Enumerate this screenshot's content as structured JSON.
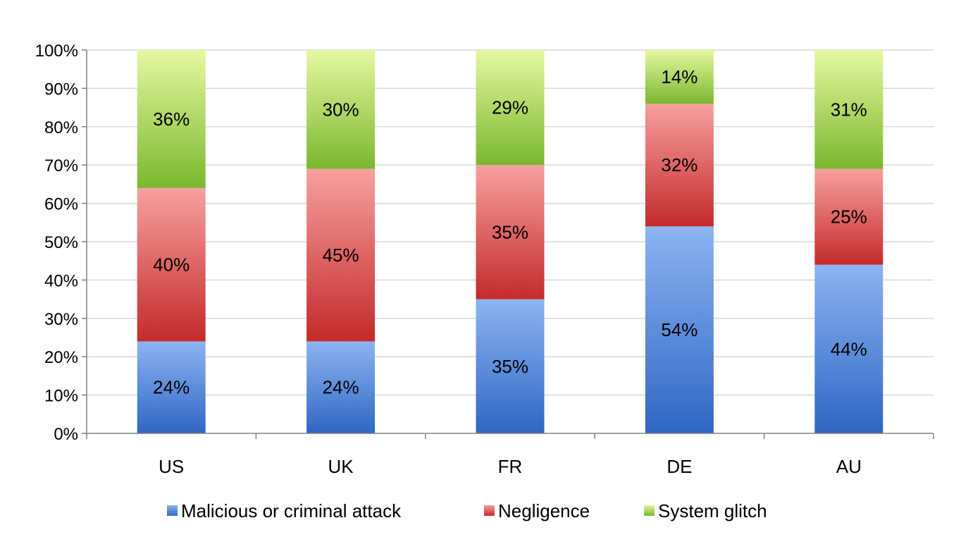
{
  "chart_data": {
    "type": "bar",
    "stacked": true,
    "categories": [
      "US",
      "UK",
      "FR",
      "DE",
      "AU"
    ],
    "series": [
      {
        "name": "Malicious or criminal attack",
        "values": [
          24,
          24,
          35,
          54,
          44
        ],
        "labels": [
          "24%",
          "24%",
          "35%",
          "54%",
          "44%"
        ],
        "color_light": "#8db4f2",
        "color_dark": "#2f66c4"
      },
      {
        "name": "Negligence",
        "values": [
          40,
          45,
          35,
          32,
          25
        ],
        "labels": [
          "40%",
          "45%",
          "35%",
          "32%",
          "25%"
        ],
        "color_light": "#f7a0a0",
        "color_dark": "#c42a2a"
      },
      {
        "name": "System glitch",
        "values": [
          36,
          30,
          29,
          14,
          31
        ],
        "labels": [
          "36%",
          "30%",
          "29%",
          "14%",
          "31%"
        ],
        "color_light": "#e6f7a0",
        "color_dark": "#7ab82e"
      }
    ],
    "y_ticks": [
      "0%",
      "10%",
      "20%",
      "30%",
      "40%",
      "50%",
      "60%",
      "70%",
      "80%",
      "90%",
      "100%"
    ],
    "ylim": [
      0,
      100
    ],
    "grid": true,
    "legend_position": "bottom",
    "title": "",
    "xlabel": "",
    "ylabel": ""
  }
}
